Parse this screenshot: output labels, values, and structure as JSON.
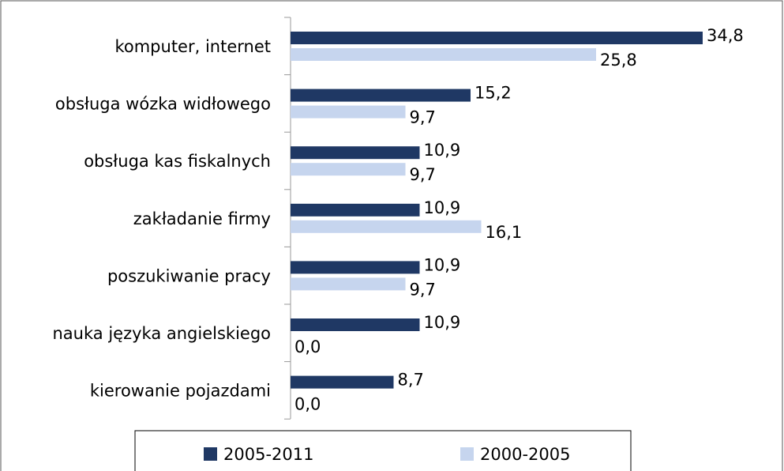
{
  "chart_data": {
    "type": "bar",
    "orientation": "horizontal",
    "categories": [
      "komputer, internet",
      "obsługa wózka widłowego",
      "obsługa kas fiskalnych",
      "zakładanie firmy",
      "poszukiwanie pracy",
      "nauka języka angielskiego",
      "kierowanie pojazdami"
    ],
    "series": [
      {
        "name": "2005-2011",
        "color": "#1f3864",
        "values": [
          34.8,
          15.2,
          10.9,
          10.9,
          10.9,
          10.9,
          8.7
        ],
        "value_labels": [
          "34,8",
          "15,2",
          "10,9",
          "10,9",
          "10,9",
          "10,9",
          "8,7"
        ]
      },
      {
        "name": "2000-2005",
        "color": "#c6d5ee",
        "values": [
          25.8,
          9.7,
          9.7,
          16.1,
          9.7,
          0.0,
          0.0
        ],
        "value_labels": [
          "25,8",
          "9,7",
          "9,7",
          "16,1",
          "9,7",
          "0,0",
          "0,0"
        ]
      }
    ],
    "legend": "bottom"
  }
}
